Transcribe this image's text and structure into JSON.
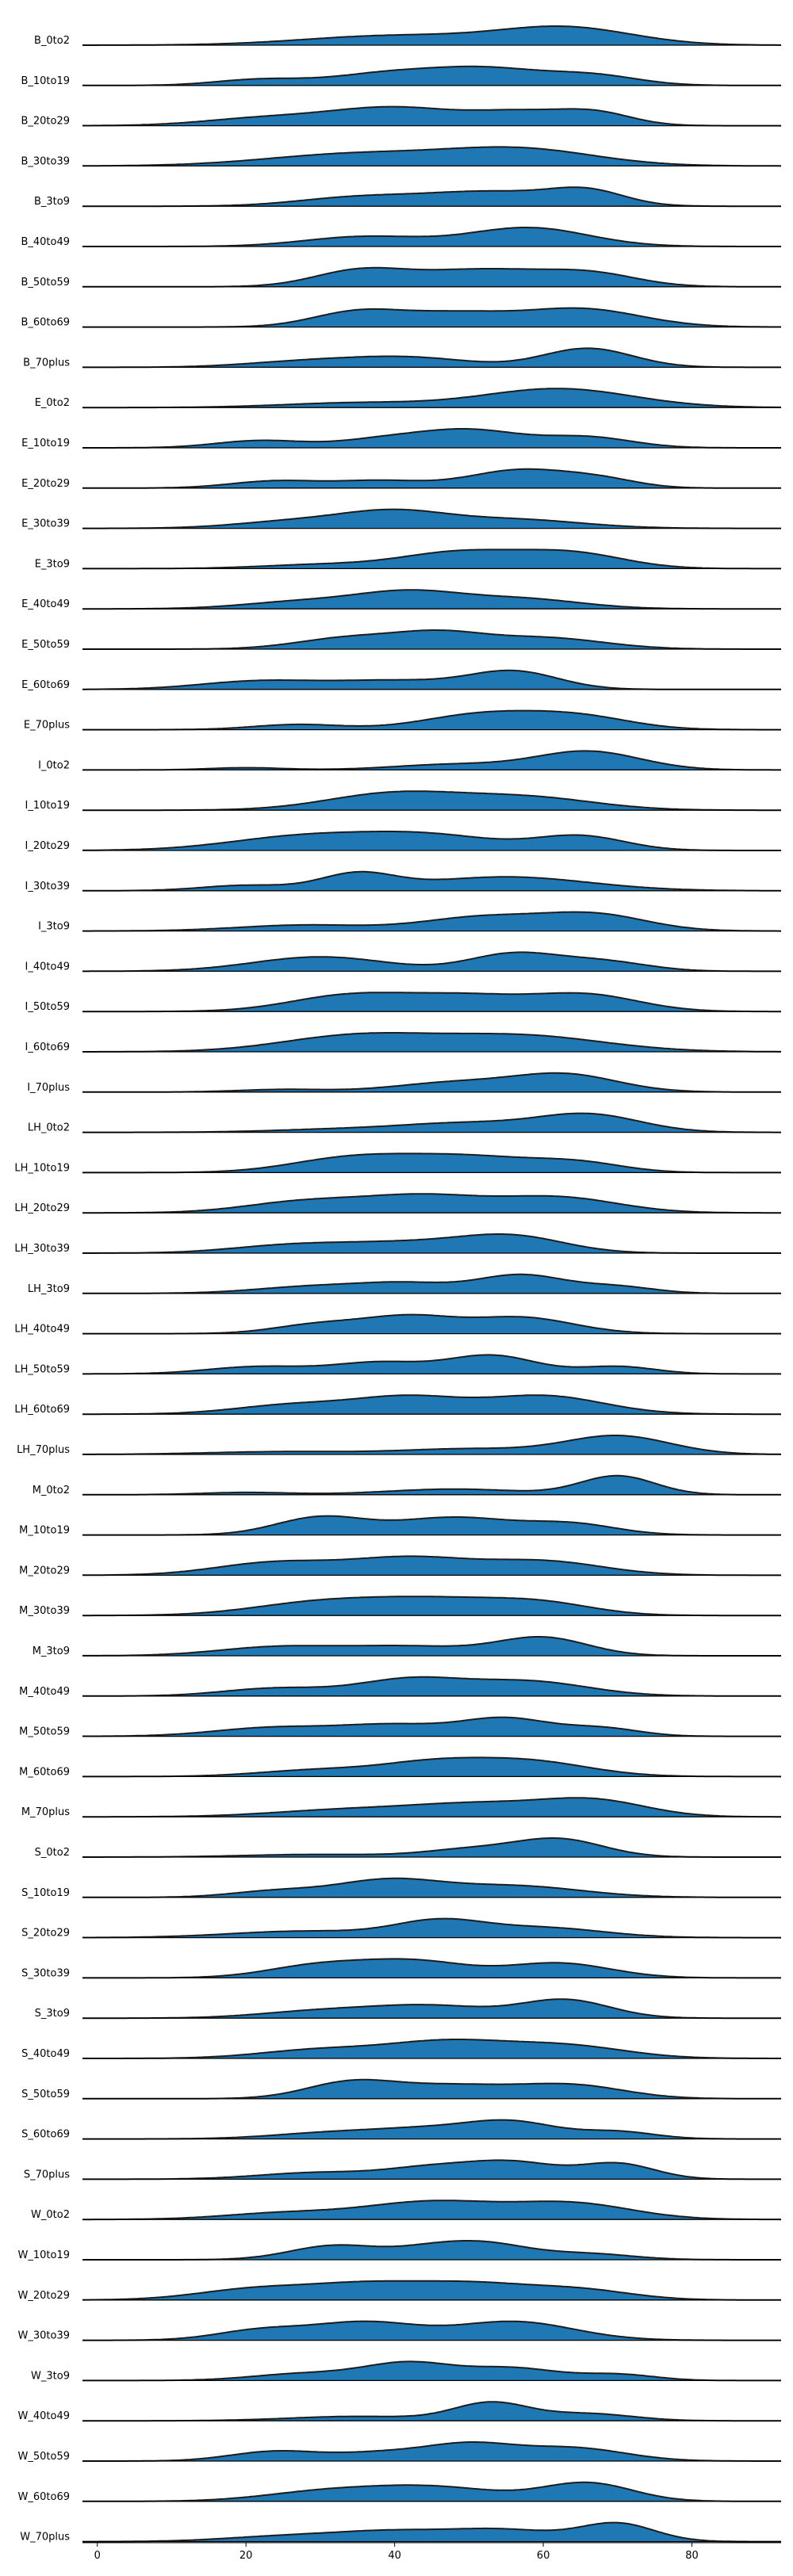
{
  "chart_data": {
    "type": "ridgeline",
    "title": "",
    "xlabel": "",
    "ylabel": "",
    "xlim": [
      -2,
      92
    ],
    "xticks": [
      0,
      20,
      40,
      60,
      80
    ],
    "fill_color": "#1f77b4",
    "line_color": "#1c1c1c",
    "rows": [
      {
        "label": "B_0to2",
        "peaks": [
          [
            40,
            12,
            0.55
          ],
          [
            63,
            9,
            1.0
          ]
        ]
      },
      {
        "label": "B_10to19",
        "peaks": [
          [
            22,
            6,
            0.3
          ],
          [
            38,
            7,
            0.5
          ],
          [
            52,
            8,
            0.85
          ],
          [
            67,
            6,
            0.45
          ]
        ]
      },
      {
        "label": "B_20to29",
        "peaks": [
          [
            22,
            8,
            0.3
          ],
          [
            40,
            9,
            0.8
          ],
          [
            57,
            6,
            0.5
          ],
          [
            67,
            5,
            0.55
          ]
        ]
      },
      {
        "label": "B_30to39",
        "peaks": [
          [
            35,
            12,
            0.45
          ],
          [
            57,
            10,
            0.6
          ]
        ]
      },
      {
        "label": "B_3to9",
        "peaks": [
          [
            35,
            8,
            0.45
          ],
          [
            53,
            9,
            0.75
          ],
          [
            66,
            5,
            0.7
          ]
        ]
      },
      {
        "label": "B_40to49",
        "peaks": [
          [
            36,
            8,
            0.5
          ],
          [
            58,
            8,
            0.95
          ]
        ]
      },
      {
        "label": "B_50to59",
        "peaks": [
          [
            35,
            6,
            0.65
          ],
          [
            52,
            10,
            0.8
          ],
          [
            67,
            6,
            0.45
          ]
        ]
      },
      {
        "label": "B_60to69",
        "peaks": [
          [
            35,
            6,
            0.7
          ],
          [
            48,
            7,
            0.6
          ],
          [
            65,
            8,
            0.85
          ]
        ]
      },
      {
        "label": "B_70plus",
        "peaks": [
          [
            28,
            8,
            0.3
          ],
          [
            42,
            8,
            0.5
          ],
          [
            66,
            6,
            1.0
          ]
        ]
      },
      {
        "label": "E_0to2",
        "peaks": [
          [
            35,
            10,
            0.25
          ],
          [
            62,
            10,
            1.0
          ]
        ]
      },
      {
        "label": "E_10to19",
        "peaks": [
          [
            22,
            6,
            0.35
          ],
          [
            38,
            6,
            0.35
          ],
          [
            50,
            7,
            0.85
          ],
          [
            66,
            6,
            0.5
          ]
        ]
      },
      {
        "label": "E_20to29",
        "peaks": [
          [
            24,
            6,
            0.35
          ],
          [
            38,
            6,
            0.35
          ],
          [
            57,
            7,
            0.9
          ],
          [
            68,
            5,
            0.35
          ]
        ]
      },
      {
        "label": "E_30to39",
        "peaks": [
          [
            27,
            8,
            0.45
          ],
          [
            40,
            7,
            0.95
          ],
          [
            56,
            9,
            0.55
          ]
        ]
      },
      {
        "label": "E_3to9",
        "peaks": [
          [
            30,
            8,
            0.2
          ],
          [
            49,
            8,
            0.85
          ],
          [
            64,
            7,
            0.75
          ]
        ]
      },
      {
        "label": "E_40to49",
        "peaks": [
          [
            28,
            8,
            0.45
          ],
          [
            42,
            7,
            0.95
          ],
          [
            57,
            8,
            0.6
          ]
        ]
      },
      {
        "label": "E_50to59",
        "peaks": [
          [
            34,
            7,
            0.65
          ],
          [
            46,
            6,
            0.8
          ],
          [
            60,
            8,
            0.65
          ]
        ]
      },
      {
        "label": "E_60to69",
        "peaks": [
          [
            22,
            8,
            0.45
          ],
          [
            40,
            8,
            0.45
          ],
          [
            56,
            6,
            0.95
          ]
        ]
      },
      {
        "label": "E_70plus",
        "peaks": [
          [
            27,
            6,
            0.3
          ],
          [
            52,
            8,
            0.9
          ],
          [
            65,
            7,
            0.7
          ]
        ]
      },
      {
        "label": "I_0to2",
        "peaks": [
          [
            20,
            5,
            0.12
          ],
          [
            48,
            8,
            0.3
          ],
          [
            66,
            7,
            1.0
          ]
        ]
      },
      {
        "label": "I_10to19",
        "peaks": [
          [
            40,
            9,
            0.95
          ],
          [
            58,
            9,
            0.7
          ]
        ]
      },
      {
        "label": "I_20to29",
        "peaks": [
          [
            28,
            10,
            0.6
          ],
          [
            45,
            9,
            0.6
          ],
          [
            65,
            6,
            0.6
          ]
        ]
      },
      {
        "label": "I_30to39",
        "peaks": [
          [
            20,
            6,
            0.25
          ],
          [
            35,
            5,
            0.75
          ],
          [
            55,
            11,
            0.65
          ]
        ]
      },
      {
        "label": "I_3to9",
        "peaks": [
          [
            28,
            9,
            0.3
          ],
          [
            52,
            8,
            0.7
          ],
          [
            67,
            7,
            0.8
          ]
        ]
      },
      {
        "label": "I_40to49",
        "peaks": [
          [
            30,
            9,
            0.75
          ],
          [
            56,
            6,
            0.9
          ],
          [
            68,
            6,
            0.5
          ]
        ]
      },
      {
        "label": "I_50to59",
        "peaks": [
          [
            34,
            8,
            0.75
          ],
          [
            50,
            8,
            0.7
          ],
          [
            66,
            7,
            0.75
          ]
        ]
      },
      {
        "label": "I_60to69",
        "peaks": [
          [
            35,
            10,
            0.75
          ],
          [
            57,
            11,
            0.75
          ]
        ]
      },
      {
        "label": "I_70plus",
        "peaks": [
          [
            25,
            6,
            0.15
          ],
          [
            48,
            8,
            0.55
          ],
          [
            63,
            7,
            1.0
          ]
        ]
      },
      {
        "label": "LH_0to2",
        "peaks": [
          [
            35,
            10,
            0.2
          ],
          [
            50,
            8,
            0.45
          ],
          [
            66,
            7,
            1.0
          ]
        ]
      },
      {
        "label": "LH_10to19",
        "peaks": [
          [
            34,
            8,
            0.75
          ],
          [
            50,
            9,
            0.85
          ],
          [
            65,
            6,
            0.45
          ]
        ]
      },
      {
        "label": "LH_20to29",
        "peaks": [
          [
            28,
            8,
            0.55
          ],
          [
            44,
            8,
            0.8
          ],
          [
            62,
            8,
            0.75
          ]
        ]
      },
      {
        "label": "LH_30to39",
        "peaks": [
          [
            26,
            8,
            0.45
          ],
          [
            42,
            9,
            0.6
          ],
          [
            56,
            7,
            0.95
          ]
        ]
      },
      {
        "label": "LH_3to9",
        "peaks": [
          [
            30,
            8,
            0.4
          ],
          [
            42,
            6,
            0.45
          ],
          [
            57,
            6,
            1.0
          ],
          [
            70,
            5,
            0.35
          ]
        ]
      },
      {
        "label": "LH_40to49",
        "peaks": [
          [
            30,
            6,
            0.55
          ],
          [
            42,
            6,
            0.95
          ],
          [
            57,
            7,
            0.95
          ]
        ]
      },
      {
        "label": "LH_50to59",
        "peaks": [
          [
            22,
            7,
            0.4
          ],
          [
            38,
            6,
            0.6
          ],
          [
            53,
            6,
            1.0
          ],
          [
            70,
            5,
            0.4
          ]
        ]
      },
      {
        "label": "LH_60to69",
        "peaks": [
          [
            27,
            8,
            0.4
          ],
          [
            42,
            7,
            0.65
          ],
          [
            60,
            8,
            0.75
          ]
        ]
      },
      {
        "label": "LH_70plus",
        "peaks": [
          [
            25,
            10,
            0.15
          ],
          [
            50,
            9,
            0.3
          ],
          [
            70,
            7,
            1.0
          ]
        ]
      },
      {
        "label": "M_0to2",
        "peaks": [
          [
            20,
            6,
            0.12
          ],
          [
            48,
            9,
            0.3
          ],
          [
            70,
            5,
            1.0
          ]
        ]
      },
      {
        "label": "M_10to19",
        "peaks": [
          [
            30,
            6,
            0.85
          ],
          [
            48,
            8,
            0.85
          ],
          [
            64,
            6,
            0.5
          ]
        ]
      },
      {
        "label": "M_20to29",
        "peaks": [
          [
            24,
            8,
            0.6
          ],
          [
            42,
            8,
            0.8
          ],
          [
            60,
            8,
            0.65
          ]
        ]
      },
      {
        "label": "M_30to39",
        "peaks": [
          [
            30,
            9,
            0.65
          ],
          [
            46,
            9,
            0.75
          ],
          [
            60,
            7,
            0.55
          ]
        ]
      },
      {
        "label": "M_3to9",
        "peaks": [
          [
            24,
            8,
            0.45
          ],
          [
            42,
            9,
            0.5
          ],
          [
            60,
            6,
            0.95
          ]
        ]
      },
      {
        "label": "M_40to49",
        "peaks": [
          [
            24,
            7,
            0.4
          ],
          [
            42,
            7,
            0.85
          ],
          [
            58,
            8,
            0.75
          ]
        ]
      },
      {
        "label": "M_50to59",
        "peaks": [
          [
            24,
            8,
            0.45
          ],
          [
            40,
            7,
            0.55
          ],
          [
            55,
            6,
            0.9
          ],
          [
            68,
            5,
            0.4
          ]
        ]
      },
      {
        "label": "M_60to69",
        "peaks": [
          [
            30,
            8,
            0.35
          ],
          [
            45,
            7,
            0.65
          ],
          [
            58,
            8,
            0.8
          ]
        ]
      },
      {
        "label": "M_70plus",
        "peaks": [
          [
            34,
            10,
            0.35
          ],
          [
            52,
            9,
            0.6
          ],
          [
            67,
            7,
            0.75
          ]
        ]
      },
      {
        "label": "S_0to2",
        "peaks": [
          [
            30,
            10,
            0.15
          ],
          [
            50,
            6,
            0.4
          ],
          [
            62,
            6,
            1.0
          ]
        ]
      },
      {
        "label": "S_10to19",
        "peaks": [
          [
            24,
            6,
            0.35
          ],
          [
            39,
            7,
            0.95
          ],
          [
            56,
            9,
            0.65
          ]
        ]
      },
      {
        "label": "S_20to29",
        "peaks": [
          [
            28,
            10,
            0.4
          ],
          [
            46,
            6,
            0.95
          ],
          [
            60,
            8,
            0.6
          ]
        ]
      },
      {
        "label": "S_30to39",
        "peaks": [
          [
            30,
            7,
            0.6
          ],
          [
            43,
            7,
            0.75
          ],
          [
            62,
            7,
            0.7
          ]
        ]
      },
      {
        "label": "S_3to9",
        "peaks": [
          [
            30,
            8,
            0.35
          ],
          [
            45,
            8,
            0.6
          ],
          [
            63,
            6,
            0.9
          ]
        ]
      },
      {
        "label": "S_40to49",
        "peaks": [
          [
            30,
            8,
            0.45
          ],
          [
            47,
            8,
            0.85
          ],
          [
            63,
            8,
            0.65
          ]
        ]
      },
      {
        "label": "S_50to59",
        "peaks": [
          [
            34,
            6,
            0.85
          ],
          [
            48,
            8,
            0.7
          ],
          [
            64,
            7,
            0.7
          ]
        ]
      },
      {
        "label": "S_60to69",
        "peaks": [
          [
            32,
            8,
            0.4
          ],
          [
            45,
            7,
            0.55
          ],
          [
            56,
            6,
            1.0
          ],
          [
            70,
            5,
            0.45
          ]
        ]
      },
      {
        "label": "S_70plus",
        "peaks": [
          [
            30,
            8,
            0.35
          ],
          [
            45,
            6,
            0.55
          ],
          [
            56,
            6,
            0.85
          ],
          [
            70,
            5,
            0.8
          ]
        ]
      },
      {
        "label": "W_0to2",
        "peaks": [
          [
            25,
            8,
            0.3
          ],
          [
            45,
            9,
            0.85
          ],
          [
            64,
            8,
            0.75
          ]
        ]
      },
      {
        "label": "W_10to19",
        "peaks": [
          [
            32,
            6,
            0.85
          ],
          [
            44,
            5,
            0.45
          ],
          [
            52,
            6,
            0.95
          ],
          [
            66,
            6,
            0.35
          ]
        ]
      },
      {
        "label": "W_20to29",
        "peaks": [
          [
            22,
            8,
            0.55
          ],
          [
            36,
            7,
            0.6
          ],
          [
            50,
            8,
            0.75
          ],
          [
            65,
            7,
            0.45
          ]
        ]
      },
      {
        "label": "W_30to39",
        "peaks": [
          [
            22,
            6,
            0.45
          ],
          [
            36,
            7,
            0.8
          ],
          [
            56,
            8,
            0.85
          ]
        ]
      },
      {
        "label": "W_3to9",
        "peaks": [
          [
            28,
            7,
            0.4
          ],
          [
            42,
            6,
            1.0
          ],
          [
            56,
            6,
            0.7
          ],
          [
            70,
            5,
            0.35
          ]
        ]
      },
      {
        "label": "W_40to49",
        "peaks": [
          [
            35,
            9,
            0.25
          ],
          [
            53,
            5,
            1.0
          ],
          [
            66,
            6,
            0.4
          ]
        ]
      },
      {
        "label": "W_50to59",
        "peaks": [
          [
            24,
            6,
            0.45
          ],
          [
            38,
            6,
            0.35
          ],
          [
            50,
            6,
            0.75
          ],
          [
            64,
            7,
            0.6
          ]
        ]
      },
      {
        "label": "W_60to69",
        "peaks": [
          [
            30,
            8,
            0.45
          ],
          [
            45,
            9,
            0.75
          ],
          [
            66,
            6,
            0.95
          ]
        ]
      },
      {
        "label": "W_70plus",
        "peaks": [
          [
            25,
            8,
            0.25
          ],
          [
            40,
            8,
            0.5
          ],
          [
            55,
            7,
            0.55
          ],
          [
            70,
            5,
            0.9
          ]
        ]
      }
    ]
  }
}
